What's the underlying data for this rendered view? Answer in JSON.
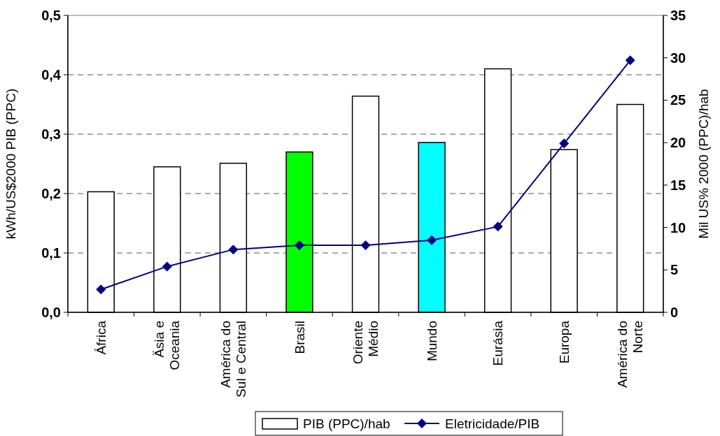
{
  "chart_data": {
    "type": "bar",
    "categories": [
      "África",
      "Äsia e\nOceania",
      "América do\nSul e Central",
      "Brasil",
      "Oriente\nMédio",
      "Mundo",
      "Eurásia",
      "Europa",
      "América do\nNorte"
    ],
    "series": [
      {
        "name": "PIB (PPC)/hab",
        "color": "#ffffff",
        "colors": [
          "#ffffff",
          "#ffffff",
          "#ffffff",
          "#00ff00",
          "#ffffff",
          "#00ffff",
          "#ffffff",
          "#ffffff",
          "#ffffff"
        ],
        "values": [
          0.203,
          0.245,
          0.251,
          0.27,
          0.364,
          0.286,
          0.41,
          0.274,
          0.35
        ]
      },
      {
        "name": "Eletricidade/PIB",
        "type": "line",
        "axis": "y2",
        "color": "#000080",
        "marker": "diamond",
        "values": [
          2.7,
          5.4,
          7.4,
          7.9,
          7.9,
          8.5,
          10.1,
          19.9,
          29.7
        ]
      }
    ],
    "ylabel": "kWh/US$2000 PIB (PPC)",
    "y2label": "Mil US% 2000 (PPC)/hab",
    "ylim": [
      0,
      0.5
    ],
    "yticks": [
      {
        "value": 0,
        "label": "0,0"
      },
      {
        "value": 0.1,
        "label": "0,1"
      },
      {
        "value": 0.2,
        "label": "0,2"
      },
      {
        "value": 0.3,
        "label": "0,3"
      },
      {
        "value": 0.4,
        "label": "0,4"
      },
      {
        "value": 0.5,
        "label": "0,5"
      }
    ],
    "y2lim": [
      0,
      35
    ],
    "y2ticks": [
      0,
      5,
      10,
      15,
      20,
      25,
      30,
      35
    ],
    "grid": "y",
    "legend": "bottom"
  }
}
